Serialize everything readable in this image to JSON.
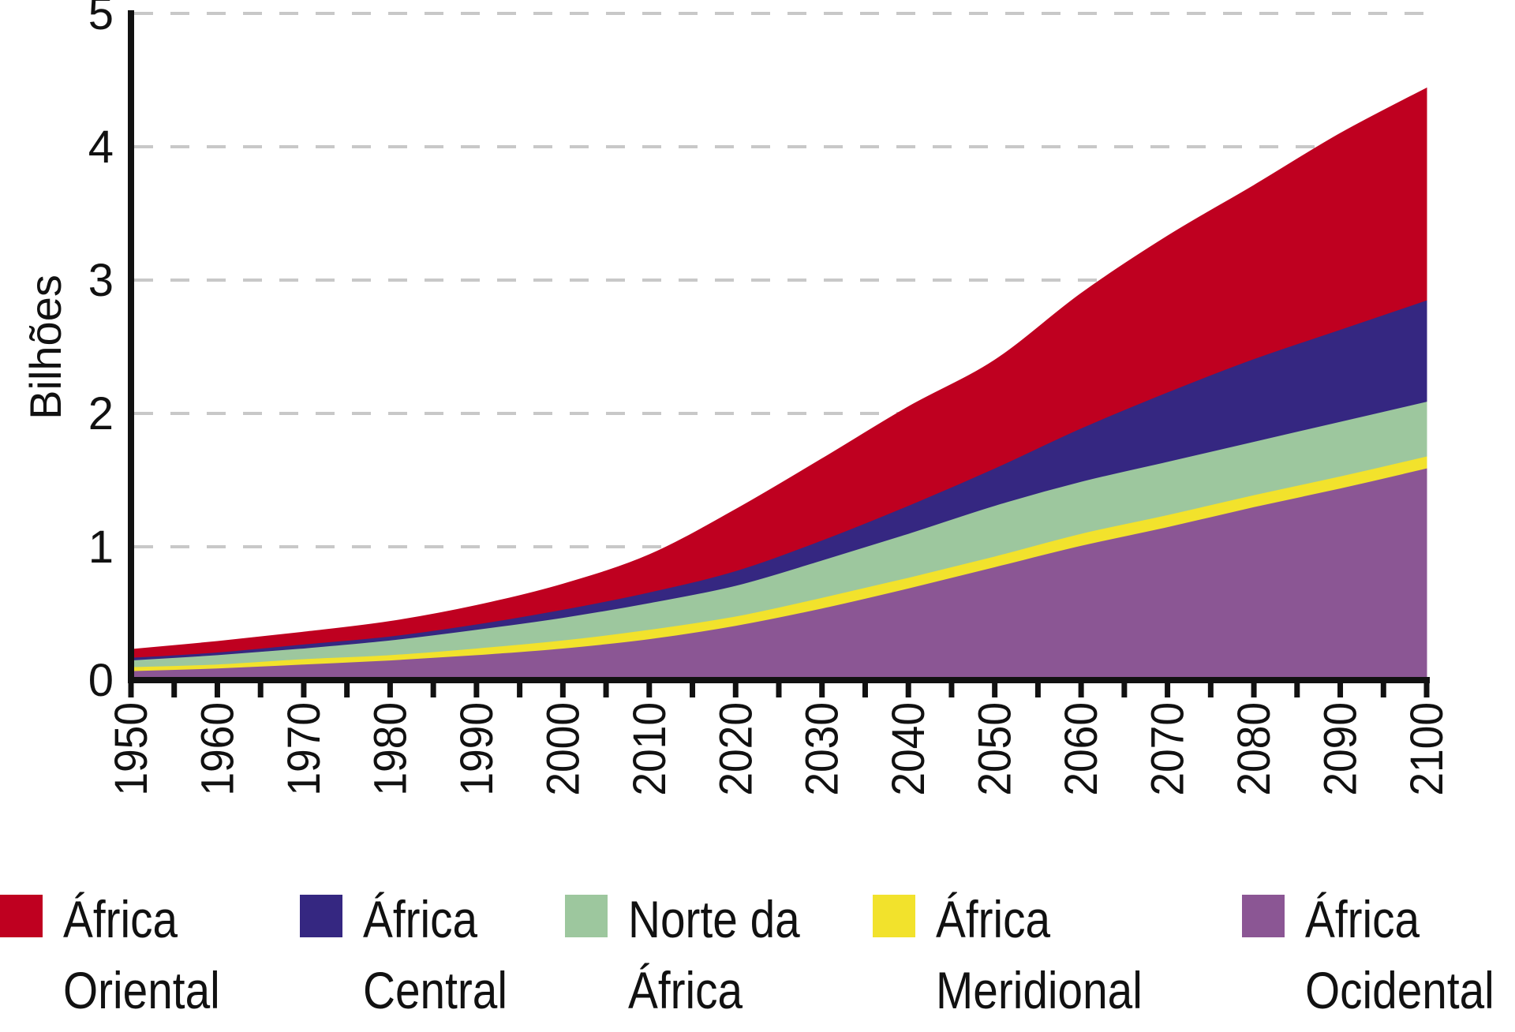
{
  "chart_data": {
    "type": "area",
    "stacked": true,
    "title": "",
    "xlabel": "",
    "ylabel": "Bilhões",
    "xlim": [
      1950,
      2100
    ],
    "ylim": [
      0,
      5
    ],
    "yticks": [
      0,
      1,
      2,
      3,
      4,
      5
    ],
    "xticks": [
      1950,
      1960,
      1970,
      1980,
      1990,
      2000,
      2010,
      2020,
      2030,
      2040,
      2050,
      2060,
      2070,
      2080,
      2090,
      2100
    ],
    "grid": "horizontal-dashed",
    "legend_position": "bottom",
    "x": [
      1950,
      1960,
      1970,
      1980,
      1990,
      2000,
      2010,
      2020,
      2030,
      2040,
      2050,
      2060,
      2070,
      2080,
      2090,
      2100
    ],
    "series": [
      {
        "name": "África\nOcidental",
        "color": "#8b5694",
        "values": [
          0.07,
          0.09,
          0.12,
          0.15,
          0.19,
          0.24,
          0.31,
          0.41,
          0.54,
          0.69,
          0.85,
          1.01,
          1.15,
          1.3,
          1.44,
          1.59
        ]
      },
      {
        "name": "África\nMeridional",
        "color": "#f2e22c",
        "values": [
          0.03,
          0.03,
          0.04,
          0.04,
          0.05,
          0.06,
          0.07,
          0.07,
          0.08,
          0.08,
          0.08,
          0.09,
          0.09,
          0.09,
          0.09,
          0.09
        ]
      },
      {
        "name": "Norte da\nÁfrica",
        "color": "#9dc79e",
        "values": [
          0.05,
          0.07,
          0.08,
          0.11,
          0.14,
          0.17,
          0.2,
          0.23,
          0.28,
          0.33,
          0.38,
          0.39,
          0.4,
          0.4,
          0.41,
          0.41
        ]
      },
      {
        "name": "África\nCentral",
        "color": "#352781",
        "values": [
          0.02,
          0.02,
          0.03,
          0.03,
          0.04,
          0.06,
          0.08,
          0.11,
          0.15,
          0.21,
          0.28,
          0.4,
          0.52,
          0.62,
          0.69,
          0.76
        ]
      },
      {
        "name": "África\nOriental",
        "color": "#bf0020",
        "values": [
          0.06,
          0.08,
          0.09,
          0.11,
          0.14,
          0.19,
          0.28,
          0.46,
          0.61,
          0.74,
          0.81,
          1.01,
          1.17,
          1.3,
          1.47,
          1.59
        ]
      }
    ]
  }
}
